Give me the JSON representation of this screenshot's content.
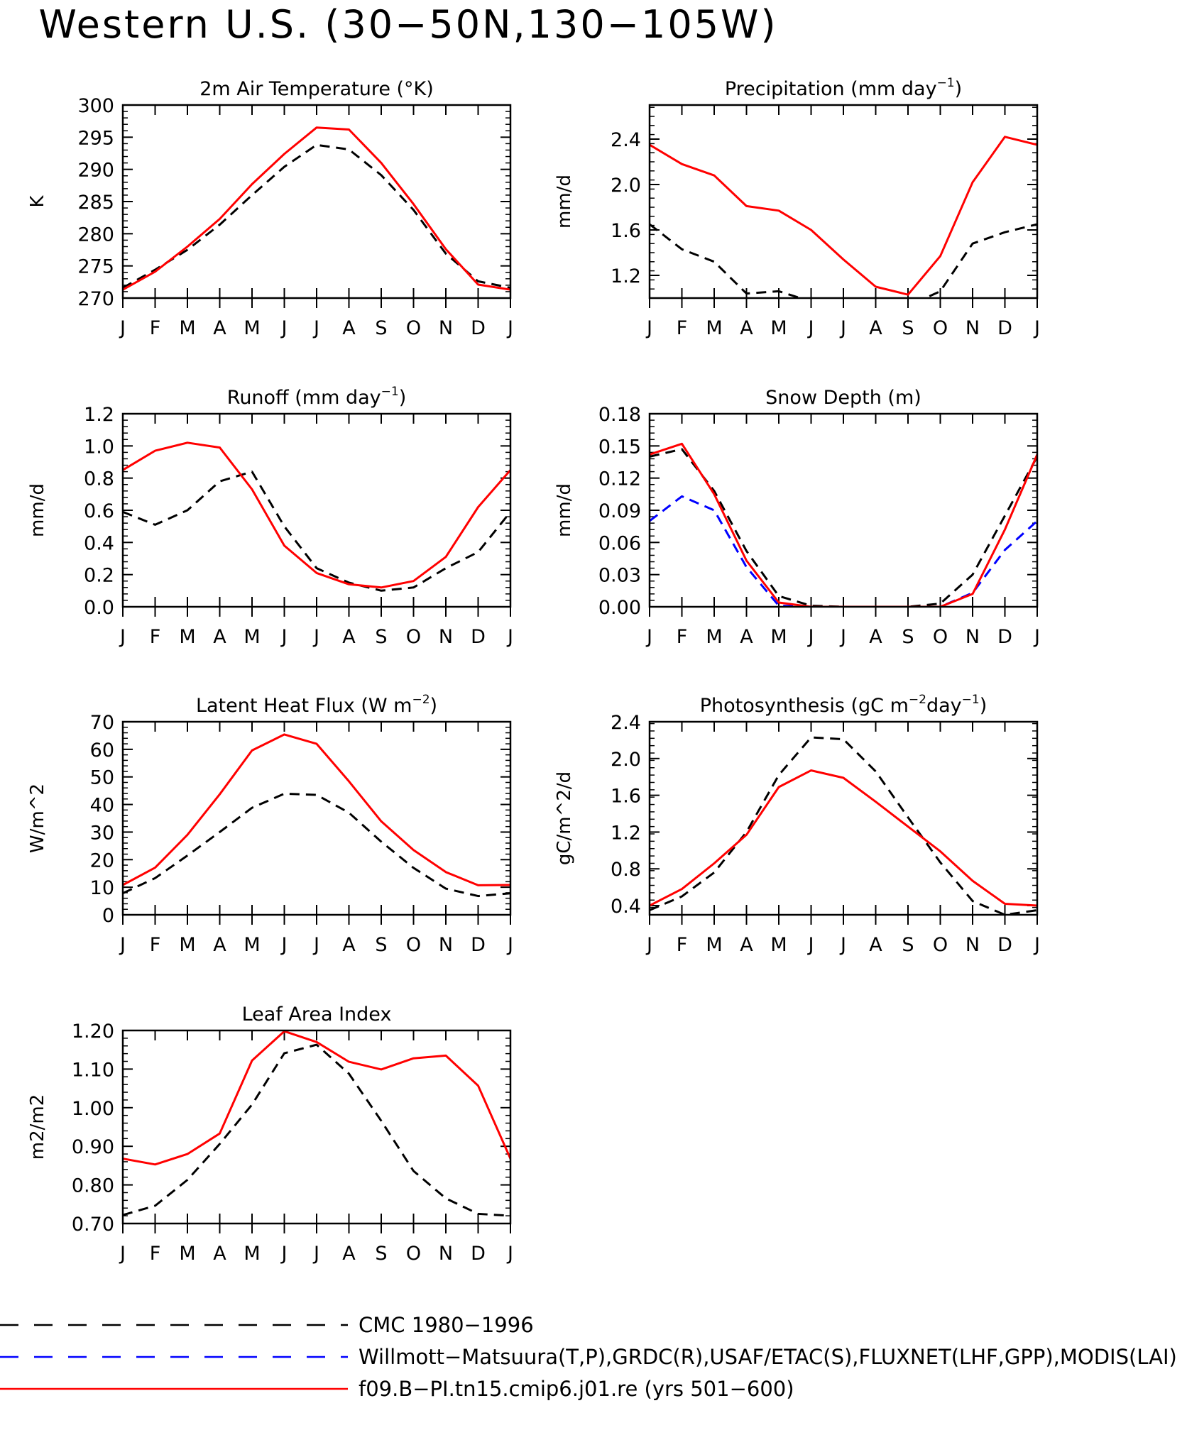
{
  "title": "Western U.S. (30−50N,130−105W)",
  "months": [
    "J",
    "F",
    "M",
    "A",
    "M",
    "J",
    "J",
    "A",
    "S",
    "O",
    "N",
    "D",
    "J"
  ],
  "colors": {
    "obs": "#000000",
    "alt": "#0000ff",
    "model": "#ff0000"
  },
  "legend": [
    {
      "label": "CMC 1980−1996",
      "color": "#000000",
      "style": "dashed"
    },
    {
      "label": "Willmott−Matsuura(T,P),GRDC(R),USAF/ETAC(S),FLUXNET(LHF,GPP),MODIS(LAI)",
      "color": "#0000ff",
      "style": "dashed"
    },
    {
      "label": "f09.B−PI.tn15.cmip6.j01.re (yrs 501−600)",
      "color": "#ff0000",
      "style": "solid"
    }
  ],
  "chart_data": [
    {
      "type": "line",
      "title": "2m Air Temperature (°K)",
      "ylabel": "K",
      "ylim": [
        270,
        300
      ],
      "yticks": [
        "270",
        "275",
        "280",
        "285",
        "290",
        "295",
        "300"
      ],
      "series": [
        {
          "name": "CMC 1980−1996",
          "style": "dashed",
          "color": "#000000",
          "values": [
            271.6,
            274.4,
            277.5,
            281.4,
            286.0,
            290.4,
            293.8,
            293.1,
            289.1,
            283.7,
            276.9,
            272.6,
            271.6
          ]
        },
        {
          "name": "f09.B−PI.tn15.cmip6.j01.re (yrs 501−600)",
          "style": "solid",
          "color": "#ff0000",
          "values": [
            271.3,
            274.1,
            278.0,
            282.3,
            287.7,
            292.4,
            296.5,
            296.2,
            291.0,
            284.6,
            277.6,
            272.1,
            271.3
          ]
        }
      ]
    },
    {
      "type": "line",
      "title": "Precipitation (mm day",
      "title_sup": "−1",
      "title_end": ")",
      "ylabel": "mm/d",
      "ylim": [
        1.0,
        2.7
      ],
      "yticks": [
        "1.2",
        "1.6",
        "2.0",
        "2.4"
      ],
      "series": [
        {
          "name": "CMC 1980−1996",
          "style": "dashed",
          "color": "#000000",
          "values": [
            1.65,
            1.43,
            1.32,
            1.04,
            1.06,
            0.97,
            0.92,
            1.0,
            0.93,
            1.06,
            1.48,
            1.58,
            1.65
          ]
        },
        {
          "name": "f09.B−PI.tn15.cmip6.j01.re (yrs 501−600)",
          "style": "solid",
          "color": "#ff0000",
          "values": [
            2.35,
            2.18,
            2.08,
            1.81,
            1.77,
            1.6,
            1.34,
            1.1,
            1.03,
            1.37,
            2.02,
            2.42,
            2.35
          ]
        }
      ]
    },
    {
      "type": "line",
      "title": "Runoff (mm day",
      "title_sup": "−1",
      "title_end": ")",
      "ylabel": "mm/d",
      "ylim": [
        0,
        1.2
      ],
      "yticks": [
        "0.0",
        "0.2",
        "0.4",
        "0.6",
        "0.8",
        "1.0",
        "1.2"
      ],
      "series": [
        {
          "name": "CMC 1980−1996",
          "style": "dashed",
          "color": "#000000",
          "values": [
            0.59,
            0.51,
            0.6,
            0.78,
            0.84,
            0.5,
            0.24,
            0.15,
            0.1,
            0.12,
            0.24,
            0.34,
            0.59
          ]
        },
        {
          "name": "f09.B−PI.tn15.cmip6.j01.re (yrs 501−600)",
          "style": "solid",
          "color": "#ff0000",
          "values": [
            0.85,
            0.97,
            1.02,
            0.99,
            0.73,
            0.38,
            0.21,
            0.14,
            0.12,
            0.16,
            0.31,
            0.62,
            0.85
          ]
        }
      ]
    },
    {
      "type": "line",
      "title": "Snow Depth (m)",
      "ylabel": "mm/d",
      "ylim": [
        0,
        0.18
      ],
      "yticks": [
        "0.00",
        "0.03",
        "0.06",
        "0.09",
        "0.12",
        "0.15",
        "0.18"
      ],
      "series": [
        {
          "name": "CMC 1980−1996",
          "style": "dashed",
          "color": "#000000",
          "values": [
            0.14,
            0.147,
            0.108,
            0.052,
            0.01,
            0.001,
            0.0,
            0.0,
            0.0,
            0.003,
            0.03,
            0.085,
            0.14
          ]
        },
        {
          "name": "Willmott−Matsuura(T,P),GRDC(R),USAF/ETAC(S),FLUXNET(LHF,GPP),MODIS(LAI)",
          "style": "dashed",
          "color": "#0000ff",
          "values": [
            0.08,
            0.103,
            0.09,
            0.037,
            0.001,
            0.0,
            0.0,
            0.0,
            0.0,
            0.0,
            0.013,
            0.053,
            0.08
          ]
        },
        {
          "name": "f09.B−PI.tn15.cmip6.j01.re (yrs 501−600)",
          "style": "solid",
          "color": "#ff0000",
          "values": [
            0.142,
            0.152,
            0.105,
            0.043,
            0.004,
            0.0,
            0.0,
            0.0,
            0.0,
            0.0,
            0.012,
            0.072,
            0.142
          ]
        }
      ]
    },
    {
      "type": "line",
      "title": "Latent Heat Flux (W m",
      "title_sup": "−2",
      "title_end": ")",
      "ylabel": "W/m^2",
      "ylim": [
        0,
        70
      ],
      "yticks": [
        "0",
        "10",
        "20",
        "30",
        "40",
        "50",
        "60",
        "70"
      ],
      "series": [
        {
          "name": "CMC 1980−1996",
          "style": "dashed",
          "color": "#000000",
          "values": [
            7.8,
            13.3,
            21.5,
            30.0,
            38.8,
            43.9,
            43.5,
            37.0,
            26.5,
            17.0,
            9.5,
            6.8,
            7.8
          ]
        },
        {
          "name": "f09.B−PI.tn15.cmip6.j01.re (yrs 501−600)",
          "style": "solid",
          "color": "#ff0000",
          "values": [
            10.8,
            17.1,
            29.0,
            43.7,
            59.6,
            65.4,
            62.0,
            48.4,
            33.9,
            23.5,
            15.5,
            10.7,
            10.8
          ]
        }
      ]
    },
    {
      "type": "line",
      "title": "Photosynthesis (gC m",
      "title_sup": "−2",
      "title_end": "day",
      "title_sup2": "−1",
      "title_end2": ")",
      "ylabel": "gC/m^2/d",
      "ylim": [
        0.3,
        2.4
      ],
      "yticks": [
        "0.4",
        "0.8",
        "1.2",
        "1.6",
        "2.0",
        "2.4"
      ],
      "series": [
        {
          "name": "CMC 1980−1996",
          "style": "dashed",
          "color": "#000000",
          "values": [
            0.35,
            0.5,
            0.76,
            1.2,
            1.82,
            2.23,
            2.21,
            1.86,
            1.36,
            0.87,
            0.45,
            0.3,
            0.35
          ]
        },
        {
          "name": "f09.B−PI.tn15.cmip6.j01.re (yrs 501−600)",
          "style": "solid",
          "color": "#ff0000",
          "values": [
            0.4,
            0.58,
            0.86,
            1.17,
            1.69,
            1.87,
            1.79,
            1.53,
            1.26,
            0.99,
            0.67,
            0.42,
            0.4
          ]
        }
      ]
    },
    {
      "type": "line",
      "title": "Leaf Area Index",
      "ylabel": "m2/m2",
      "ylim": [
        0.7,
        1.2
      ],
      "yticks": [
        "0.70",
        "0.80",
        "0.90",
        "1.00",
        "1.10",
        "1.20"
      ],
      "series": [
        {
          "name": "CMC 1980−1996",
          "style": "dashed",
          "color": "#000000",
          "values": [
            0.722,
            0.746,
            0.813,
            0.906,
            1.008,
            1.141,
            1.163,
            1.088,
            0.966,
            0.836,
            0.765,
            0.725,
            0.72
          ]
        },
        {
          "name": "f09.B−PI.tn15.cmip6.j01.re (yrs 501−600)",
          "style": "solid",
          "color": "#ff0000",
          "values": [
            0.868,
            0.853,
            0.88,
            0.933,
            1.122,
            1.198,
            1.17,
            1.119,
            1.099,
            1.128,
            1.135,
            1.057,
            0.868
          ]
        }
      ]
    }
  ]
}
